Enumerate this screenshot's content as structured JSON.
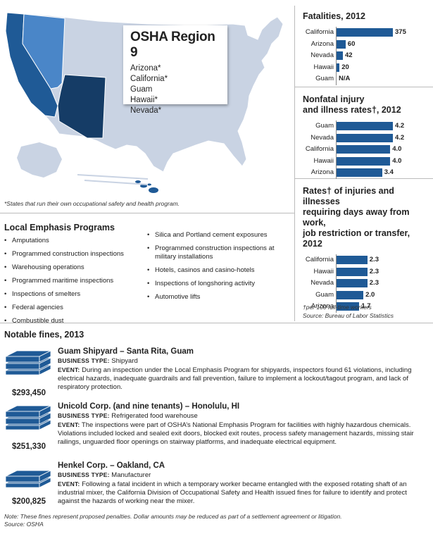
{
  "map": {
    "region_title": "OSHA Region 9",
    "states": [
      "Arizona*",
      "California*",
      "Guam",
      "Hawaii*",
      "Nevada*"
    ],
    "footnote": "*States that run their own occupational safety and health program.",
    "colors": {
      "us_base": "#c9d3e3",
      "california": "#1f5a96",
      "nevada": "#4a86c8",
      "arizona": "#153c66",
      "hawaii": "#1f5a96"
    }
  },
  "chart_data": [
    {
      "type": "bar",
      "title": "Fatalities, 2012",
      "categories": [
        "California",
        "Arizona",
        "Nevada",
        "Hawaii",
        "Guam"
      ],
      "values": [
        375,
        60,
        42,
        20,
        null
      ],
      "value_labels": [
        "375",
        "60",
        "42",
        "20",
        "N/A"
      ],
      "max": 375
    },
    {
      "type": "bar",
      "title": "Nonfatal injury and illness rates†, 2012",
      "categories": [
        "Guam",
        "Nevada",
        "California",
        "Hawaii",
        "Arizona"
      ],
      "values": [
        4.2,
        4.2,
        4.0,
        4.0,
        3.4
      ],
      "value_labels": [
        "4.2",
        "4.2",
        "4.0",
        "4.0",
        "3.4"
      ],
      "max": 4.2
    },
    {
      "type": "bar",
      "title": "Rates† of injuries and illnesses requiring days away from work, job restriction or transfer, 2012",
      "categories": [
        "California",
        "Hawaii",
        "Nevada",
        "Guam",
        "Arizona"
      ],
      "values": [
        2.3,
        2.3,
        2.3,
        2.0,
        1.7
      ],
      "value_labels": [
        "2.3",
        "2.3",
        "2.3",
        "2.0",
        "1.7"
      ],
      "max": 4.2
    }
  ],
  "charts_text": {
    "title_1": "Fatalities, 2012",
    "title_2a": "Nonfatal injury",
    "title_2b": "and illness rates†, 2012",
    "title_3a": "Rates† of injuries and illnesses",
    "title_3b": "requiring days away from work,",
    "title_3c": "job restriction or transfer, 2012",
    "note_1": "†per 100 full-time workers",
    "note_2": "Source: Bureau of Labor Statistics"
  },
  "lep": {
    "title": "Local Emphasis Programs",
    "col1": [
      "Amputations",
      "Programmed construction inspections",
      "Warehousing operations",
      "Programmed maritime inspections",
      "Inspections of smelters",
      "Federal agencies",
      "Combustible dust"
    ],
    "col2": [
      "Silica and Portland cement exposures",
      "Programmed construction inspections at military installations",
      "Hotels, casinos and casino-hotels",
      "Inspections of longshoring activity",
      "Automotive lifts"
    ]
  },
  "fines": {
    "title": "Notable fines, 2013",
    "business_type_label": "BUSINESS TYPE:",
    "event_label": "EVENT:",
    "items": [
      {
        "amount": "$293,450",
        "name": "Guam Shipyard – Santa Rita, Guam",
        "business_type": "Shipyard",
        "event": "During an inspection under the Local Emphasis Program for shipyards, inspectors found 61 violations, including electrical hazards, inadequate guardrails and fall prevention, failure to implement a lockout/tagout program, and lack of respiratory protection."
      },
      {
        "amount": "$251,330",
        "name": "Unicold Corp. (and nine tenants) – Honolulu, HI",
        "business_type": "Refrigerated food warehouse",
        "event": "The inspections were part of OSHA’s National Emphasis Program for facilities with highly hazardous chemicals. Violations included locked and sealed exit doors, blocked exit routes, process safety management hazards, missing stair railings, unguarded floor openings on stairway platforms, and inadequate electrical equipment."
      },
      {
        "amount": "$200,825",
        "name": "Henkel Corp. – Oakland, CA",
        "business_type": "Manufacturer",
        "event": "Following a fatal incident in which a temporary worker became entangled with the exposed rotating shaft of an industrial mixer, the California Division of Occupational Safety and Health issued fines for failure to identify and protect against the hazards of working near the mixer."
      }
    ]
  },
  "bottom_note": {
    "line1": "Note: These fines represent proposed penalties. Dollar amounts may be reduced as part of a settlement agreement or litigation.",
    "line2": "Source: OSHA"
  }
}
